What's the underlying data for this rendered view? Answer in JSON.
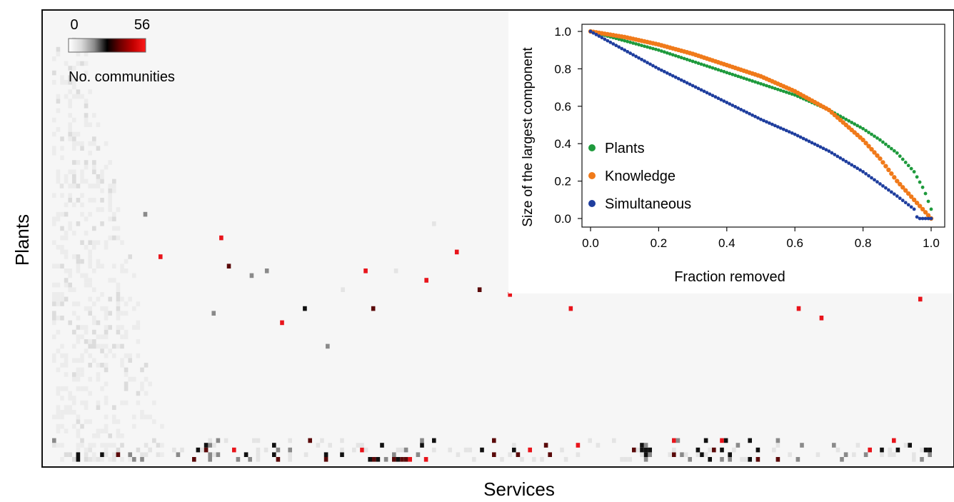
{
  "figure": {
    "y_label": "Plants",
    "x_label": "Services"
  },
  "colorbar": {
    "min_label": "0",
    "max_label": "56",
    "title": "No. communities",
    "stops": [
      "#ffffff",
      "#d9d9d9",
      "#8c8c8c",
      "#000000",
      "#6b0000",
      "#c00000",
      "#ff1a1a"
    ]
  },
  "heatmap_colors": {
    "background": "#f6f6f6",
    "low": "#e4e4e4",
    "mid": "#8a8a8a",
    "high": "#111111",
    "dark_red": "#5a0a0a",
    "red": "#e8141b"
  },
  "chart_data": [
    {
      "type": "heatmap",
      "title": "",
      "xlabel": "Services",
      "ylabel": "Plants",
      "color_scale": {
        "min": 0,
        "max": 56,
        "label": "No. communities"
      },
      "grid": false,
      "cells": [
        [
          1,
          58,
          3
        ],
        [
          12,
          52,
          10
        ],
        [
          14,
          43,
          56
        ],
        [
          21,
          31,
          10
        ],
        [
          22,
          47,
          56
        ],
        [
          23,
          41,
          40
        ],
        [
          26,
          39,
          10
        ],
        [
          28,
          40,
          20
        ],
        [
          30,
          29,
          56
        ],
        [
          33,
          32,
          30
        ],
        [
          36,
          24,
          10
        ],
        [
          38,
          36,
          8
        ],
        [
          41,
          40,
          56
        ],
        [
          42,
          32,
          45
        ],
        [
          45,
          40,
          8
        ],
        [
          49,
          38,
          50
        ],
        [
          50,
          50,
          8
        ],
        [
          53,
          44,
          56
        ],
        [
          56,
          36,
          45
        ],
        [
          60,
          35,
          56
        ],
        [
          63,
          39,
          56
        ],
        [
          66,
          40,
          20
        ],
        [
          68,
          32,
          56
        ],
        [
          73,
          41,
          30
        ],
        [
          75,
          39,
          56
        ],
        [
          80,
          38,
          56
        ],
        [
          82,
          36,
          56
        ],
        [
          85,
          39,
          56
        ],
        [
          88,
          40,
          56
        ],
        [
          90,
          37,
          56
        ],
        [
          92,
          40,
          56
        ],
        [
          98,
          32,
          56
        ],
        [
          101,
          30,
          56
        ],
        [
          104,
          39,
          56
        ],
        [
          107,
          40,
          56
        ],
        [
          110,
          38,
          56
        ],
        [
          114,
          34,
          56
        ],
        [
          116,
          39,
          56
        ],
        [
          119,
          32,
          56
        ],
        [
          122,
          38,
          56
        ]
      ]
    },
    {
      "type": "scatter",
      "title": "",
      "xlabel": "Fraction removed",
      "ylabel": "Size of the largest component",
      "xlim": [
        0.0,
        1.0
      ],
      "ylim": [
        0.0,
        1.0
      ],
      "xticks": [
        "0.0",
        "0.2",
        "0.4",
        "0.6",
        "0.8",
        "1.0"
      ],
      "yticks": [
        "0.0",
        "0.2",
        "0.4",
        "0.6",
        "0.8",
        "1.0"
      ],
      "grid": false,
      "legend_position": "bottom-left",
      "series": [
        {
          "name": "Plants",
          "color": "#1e9a3c",
          "x": [
            0.0,
            0.1,
            0.2,
            0.3,
            0.4,
            0.5,
            0.6,
            0.7,
            0.8,
            0.85,
            0.9,
            0.95,
            0.98,
            1.0
          ],
          "y": [
            1.0,
            0.95,
            0.9,
            0.84,
            0.78,
            0.72,
            0.66,
            0.58,
            0.48,
            0.42,
            0.35,
            0.25,
            0.15,
            0.05
          ]
        },
        {
          "name": "Knowledge",
          "color": "#f07a1a",
          "x": [
            0.0,
            0.1,
            0.2,
            0.3,
            0.4,
            0.5,
            0.6,
            0.7,
            0.8,
            0.85,
            0.9,
            0.95,
            0.98,
            1.0
          ],
          "y": [
            1.0,
            0.97,
            0.93,
            0.88,
            0.82,
            0.76,
            0.68,
            0.58,
            0.42,
            0.32,
            0.2,
            0.1,
            0.04,
            0.0
          ]
        },
        {
          "name": "Simultaneous",
          "color": "#1f3e9e",
          "x": [
            0.0,
            0.1,
            0.2,
            0.3,
            0.4,
            0.5,
            0.6,
            0.7,
            0.8,
            0.9,
            0.95,
            0.96,
            1.0
          ],
          "y": [
            1.0,
            0.9,
            0.8,
            0.71,
            0.62,
            0.53,
            0.45,
            0.36,
            0.25,
            0.12,
            0.05,
            0.0,
            0.0
          ]
        }
      ]
    }
  ]
}
